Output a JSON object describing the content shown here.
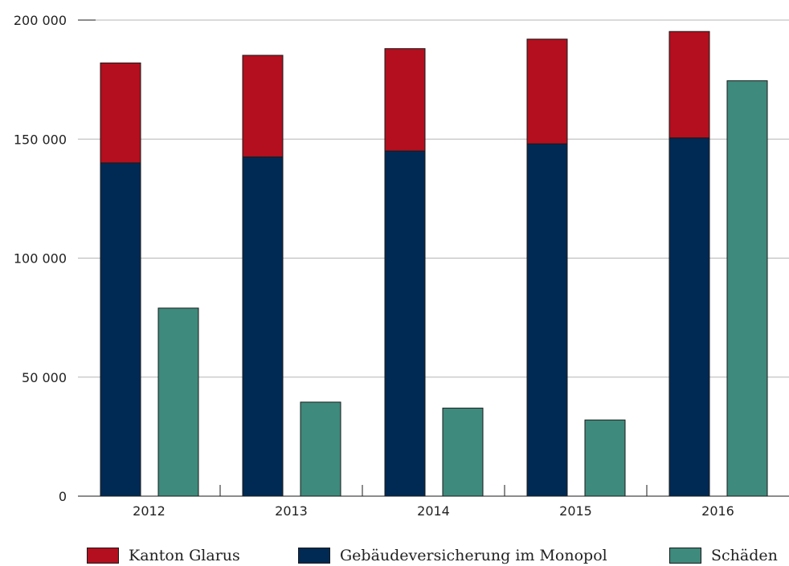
{
  "chart_data": {
    "type": "bar",
    "categories": [
      "2012",
      "2013",
      "2014",
      "2015",
      "2016"
    ],
    "series": [
      {
        "name": "Gebäudeversicherung im Monopol",
        "stack": "praemien",
        "color": "#002a54",
        "values": [
          140000,
          142500,
          145000,
          148000,
          150500
        ]
      },
      {
        "name": "Kanton Glarus",
        "stack": "praemien",
        "color": "#b30f1e",
        "values": [
          42000,
          42700,
          43000,
          44000,
          44700
        ]
      },
      {
        "name": "Schäden",
        "stack": "schaeden",
        "color": "#3e8a7c",
        "values": [
          79000,
          39500,
          37000,
          32000,
          174500
        ]
      }
    ],
    "ylim": [
      0,
      200000
    ],
    "yticks": [
      0,
      50000,
      100000,
      150000,
      200000
    ],
    "ytick_labels": [
      "0",
      "50 000",
      "100 000",
      "150 000",
      "200 000"
    ],
    "xlabel": "",
    "ylabel": "",
    "title": "",
    "grid": true,
    "legend": {
      "position": "bottom",
      "items": [
        {
          "label": "Kanton Glarus",
          "color": "#b30f1e"
        },
        {
          "label": "Gebäudeversicherung im Monopol",
          "color": "#002a54"
        },
        {
          "label": "Schäden",
          "color": "#3e8a7c"
        }
      ]
    }
  }
}
